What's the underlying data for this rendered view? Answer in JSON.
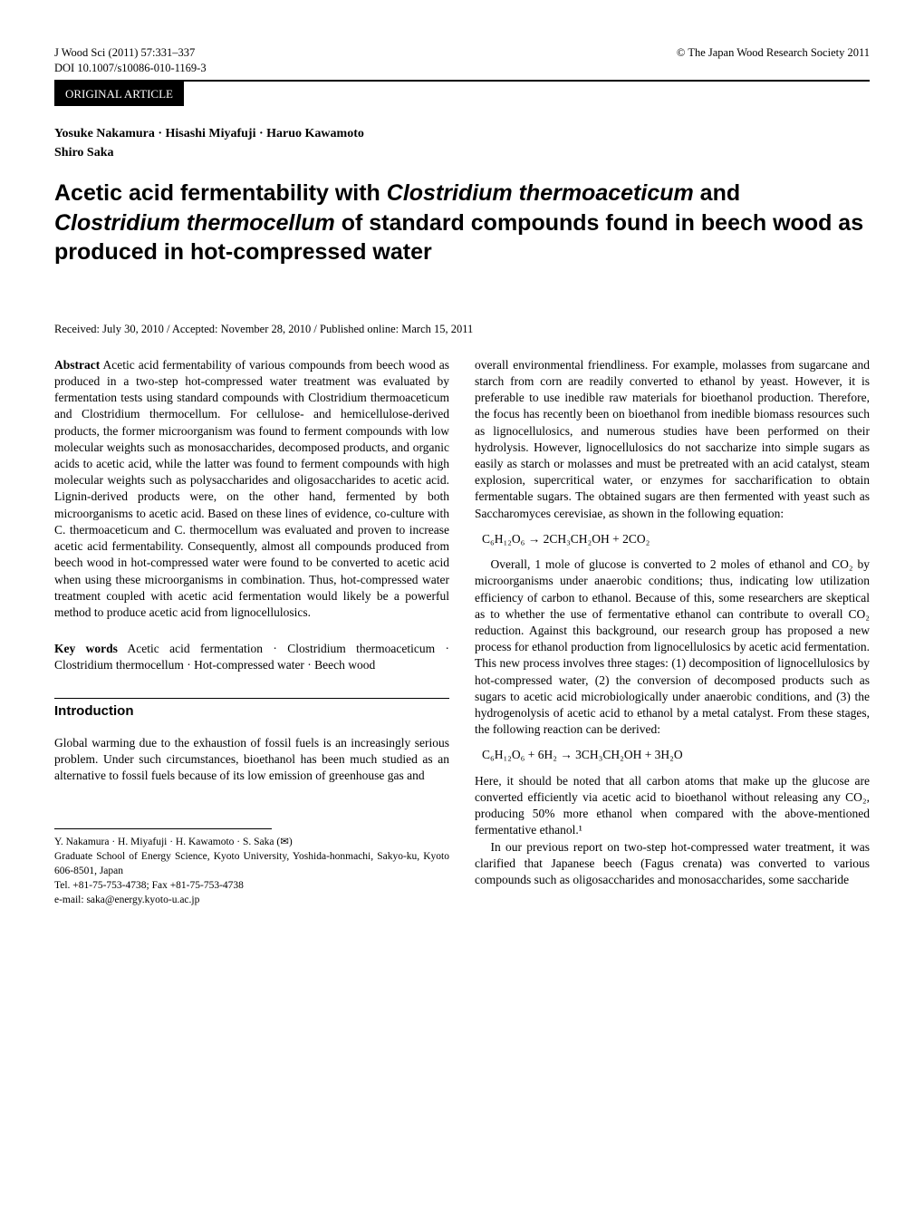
{
  "header": {
    "journal_ref": "J Wood Sci (2011) 57:331–337",
    "doi": "DOI 10.1007/s10086-010-1169-3",
    "copyright": "© The Japan Wood Research Society 2011",
    "article_type": "ORIGINAL ARTICLE"
  },
  "authors_line1": "Yosuke Nakamura · Hisashi Miyafuji · Haruo Kawamoto",
  "authors_line2": "Shiro Saka",
  "title_part1": "Acetic acid fermentability with ",
  "title_italic1": "Clostridium thermoaceticum",
  "title_part2": " and ",
  "title_italic2": "Clostridium thermocellum",
  "title_part3": " of standard compounds found in beech wood as produced in hot-compressed water",
  "received": "Received: July 30, 2010 / Accepted: November 28, 2010 / Published online: March 15, 2011",
  "abstract_label": "Abstract",
  "abstract_text": "  Acetic acid fermentability of various compounds from beech wood as produced in a two-step hot-compressed water treatment was evaluated by fermentation tests using standard compounds with Clostridium thermoaceticum and Clostridium thermocellum. For cellulose- and hemicellulose-derived products, the former microorganism was found to ferment compounds with low molecular weights such as monosaccharides, decomposed products, and organic acids to acetic acid, while the latter was found to ferment compounds with high molecular weights such as polysaccharides and oligosaccharides to acetic acid. Lignin-derived products were, on the other hand, fermented by both microorganisms to acetic acid. Based on these lines of evidence, co-culture with C. thermoaceticum and C. thermocellum was evaluated and proven to increase acetic acid fermentability. Consequently, almost all compounds produced from beech wood in hot-compressed water were found to be converted to acetic acid when using these microorganisms in combination. Thus, hot-compressed water treatment coupled with acetic acid fermentation would likely be a powerful method to produce acetic acid from lignocellulosics.",
  "keywords_label": "Key words",
  "keywords_text": "  Acetic acid fermentation · Clostridium thermoaceticum · Clostridium thermocellum · Hot-compressed water · Beech wood",
  "section_heading": "Introduction",
  "intro_p1": "Global warming due to the exhaustion of fossil fuels is an increasingly serious problem. Under such circumstances, bioethanol has been much studied as an alternative to fossil fuels because of its low emission of greenhouse gas and",
  "right_col_p1": "overall environmental friendliness. For example, molasses from sugarcane and starch from corn are readily converted to ethanol by yeast. However, it is preferable to use inedible raw materials for bioethanol production. Therefore, the focus has recently been on bioethanol from inedible biomass resources such as lignocellulosics, and numerous studies have been performed on their hydrolysis. However, lignocellulosics do not saccharize into simple sugars as easily as starch or molasses and must be pretreated with an acid catalyst, steam explosion, supercritical water, or enzymes for saccharification to obtain fermentable sugars. The obtained sugars are then fermented with yeast such as Saccharomyces cerevisiae, as shown in the following equation:",
  "equation1": "C₆H₁₂O₆ → 2CH₃CH₂OH + 2CO₂",
  "right_col_p2": "Overall, 1 mole of glucose is converted to 2 moles of ethanol and CO₂ by microorganisms under anaerobic conditions; thus, indicating low utilization efficiency of carbon to ethanol. Because of this, some researchers are skeptical as to whether the use of fermentative ethanol can contribute to overall CO₂ reduction. Against this background, our research group has proposed a new process for ethanol production from lignocellulosics by acetic acid fermentation. This new process involves three stages: (1) decomposition of lignocellulosics by hot-compressed water, (2) the conversion of decomposed products such as sugars to acetic acid microbiologically under anaerobic conditions, and (3) the hydrogenolysis of acetic acid to ethanol by a metal catalyst. From these stages, the following reaction can be derived:",
  "equation2": "C₆H₁₂O₆ + 6H₂ → 3CH₃CH₂OH + 3H₂O",
  "right_col_p3": "Here, it should be noted that all carbon atoms that make up the glucose are converted efficiently via acetic acid to bioethanol without releasing any CO₂, producing 50% more ethanol when compared with the above-mentioned fermentative ethanol.¹",
  "right_col_p4": "In our previous report on two-step hot-compressed water treatment, it was clarified that Japanese beech (Fagus crenata) was converted to various compounds such as oligosaccharides and monosaccharides, some saccharide",
  "affiliation": {
    "line1": "Y. Nakamura · H. Miyafuji · H. Kawamoto · S. Saka (✉)",
    "line2": "Graduate School of Energy Science, Kyoto University, Yoshida-honmachi, Sakyo-ku, Kyoto 606-8501, Japan",
    "line3": "Tel. +81-75-753-4738; Fax +81-75-753-4738",
    "line4": "e-mail: saka@energy.kyoto-u.ac.jp"
  }
}
